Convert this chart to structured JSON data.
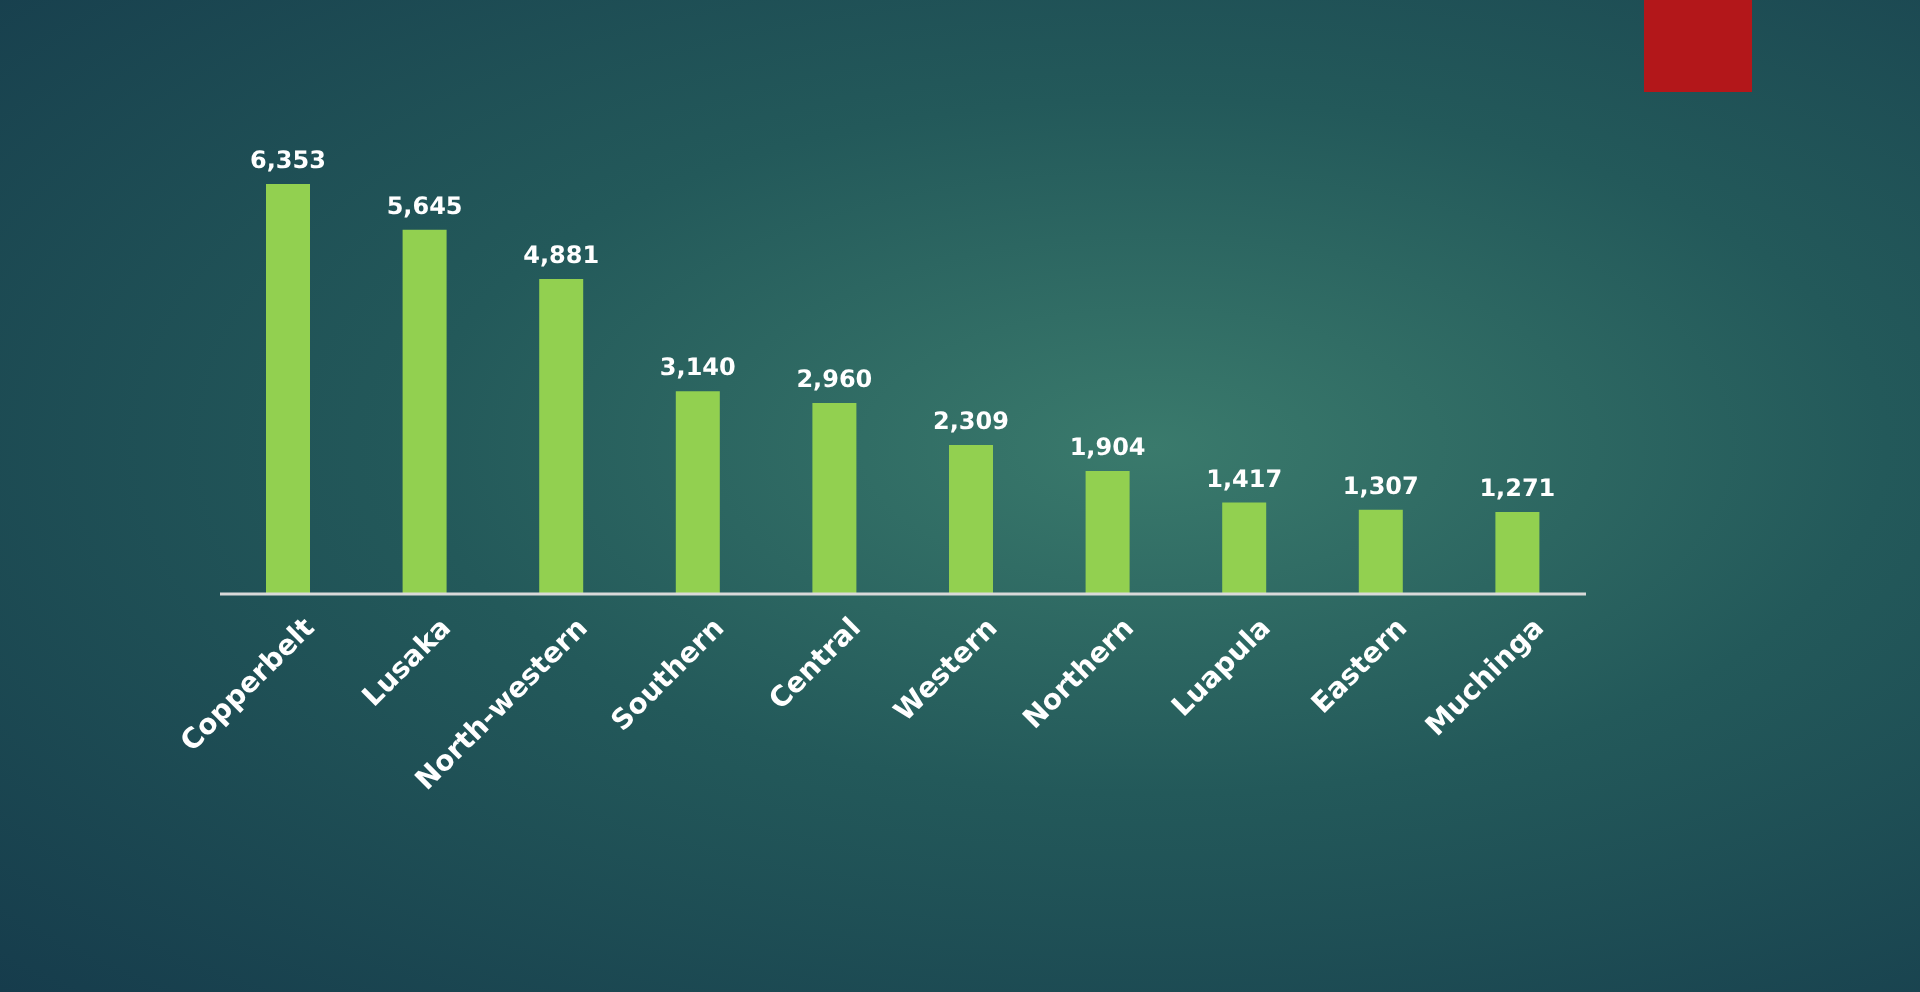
{
  "chart_data": {
    "type": "bar",
    "categories": [
      "Copperbelt",
      "Lusaka",
      "North-western",
      "Southern",
      "Central",
      "Western",
      "Northern",
      "Luapula",
      "Eastern",
      "Muchinga"
    ],
    "values": [
      6353,
      5645,
      4881,
      3140,
      2960,
      2309,
      1904,
      1417,
      1307,
      1271
    ],
    "value_labels": [
      "6,353",
      "5,645",
      "4,881",
      "3,140",
      "2,960",
      "2,309",
      "1,904",
      "1,417",
      "1,307",
      "1,271"
    ],
    "color": "#92d050",
    "grid": false,
    "legend": false
  }
}
